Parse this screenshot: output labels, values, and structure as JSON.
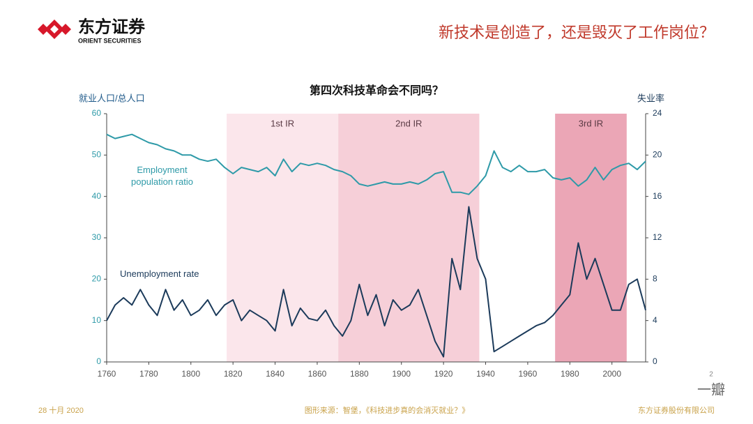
{
  "header": {
    "logo_text": "东方证券",
    "logo_sub": "ORIENT SECURITIES",
    "slide_title": "新技术是创造了，还是毁灭了工作岗位？"
  },
  "footer": {
    "date": "28 十月 2020",
    "source": "图形来源：智堡，《科技进步真的会消灭就业？》",
    "company": "东方证券股份有限公司",
    "page": "2",
    "watermark": "一瓣"
  },
  "chart_data": {
    "type": "line",
    "title": "第四次科技革命会不同吗？",
    "y_label": "就业人口/总人口",
    "y2_label": "失业率",
    "x": [
      1760,
      1764,
      1768,
      1772,
      1776,
      1780,
      1784,
      1788,
      1792,
      1796,
      1800,
      1804,
      1808,
      1812,
      1816,
      1820,
      1824,
      1828,
      1832,
      1836,
      1840,
      1844,
      1848,
      1852,
      1856,
      1860,
      1864,
      1868,
      1872,
      1876,
      1880,
      1884,
      1888,
      1892,
      1896,
      1900,
      1904,
      1908,
      1912,
      1916,
      1920,
      1924,
      1928,
      1932,
      1936,
      1940,
      1944,
      1948,
      1952,
      1956,
      1960,
      1964,
      1968,
      1972,
      1976,
      1980,
      1984,
      1988,
      1992,
      1996,
      2000,
      2004,
      2008,
      2012,
      2016
    ],
    "series": [
      {
        "name": "Employment population ratio",
        "color": "#2e9aa8",
        "axis": "y",
        "values": [
          55,
          54,
          54.5,
          55,
          54,
          53,
          52.5,
          51.5,
          51,
          50,
          50,
          49,
          48.5,
          49,
          47,
          45.5,
          47,
          46.5,
          46,
          47,
          45,
          49,
          46,
          48,
          47.5,
          48,
          47.5,
          46.5,
          46,
          45,
          43,
          42.5,
          43,
          43.5,
          43,
          43,
          43.5,
          43,
          44,
          45.5,
          46,
          41,
          41,
          40.5,
          42.5,
          45,
          51,
          47,
          46,
          47.5,
          46,
          46,
          46.5,
          44.5,
          44,
          44.5,
          42.5,
          44,
          47,
          44,
          46.5,
          47.5,
          48,
          46.5,
          48.5
        ]
      },
      {
        "name": "Unemployment rate",
        "color": "#1b3a5a",
        "axis": "y2",
        "values": [
          4,
          5.5,
          6.2,
          5.5,
          7,
          5.5,
          4.5,
          7,
          5,
          6,
          4.5,
          5,
          6,
          4.5,
          5.5,
          6,
          4,
          5,
          4.5,
          4,
          3,
          7,
          3.5,
          5.2,
          4.2,
          4,
          5,
          3.5,
          2.5,
          4,
          7.5,
          4.5,
          6.5,
          3.5,
          6,
          5,
          5.5,
          7,
          4.5,
          2,
          0.5,
          10,
          7,
          15,
          10,
          8,
          1,
          1.5,
          2,
          2.5,
          3,
          3.5,
          3.8,
          4.5,
          5.5,
          6.5,
          11.5,
          8,
          10,
          7.5,
          5,
          5,
          7.5,
          8,
          5
        ]
      }
    ],
    "regions": [
      {
        "label": "1st IR",
        "start": 1817,
        "end": 1870,
        "color": "#fbe6eb"
      },
      {
        "label": "2nd IR",
        "start": 1870,
        "end": 1937,
        "color": "#f6cfd8"
      },
      {
        "label": "3rd IR",
        "start": 1973,
        "end": 2007,
        "color": "#eba6b6"
      }
    ],
    "xlim": [
      1760,
      2016
    ],
    "xticks": [
      1760,
      1780,
      1800,
      1820,
      1840,
      1860,
      1880,
      1900,
      1920,
      1940,
      1960,
      1980,
      2000
    ],
    "ylim": [
      0,
      60
    ],
    "yticks": [
      0,
      10,
      20,
      30,
      40,
      50,
      60
    ],
    "y2lim": [
      0,
      24
    ],
    "y2ticks": [
      0,
      4,
      8,
      12,
      16,
      20,
      24
    ]
  }
}
